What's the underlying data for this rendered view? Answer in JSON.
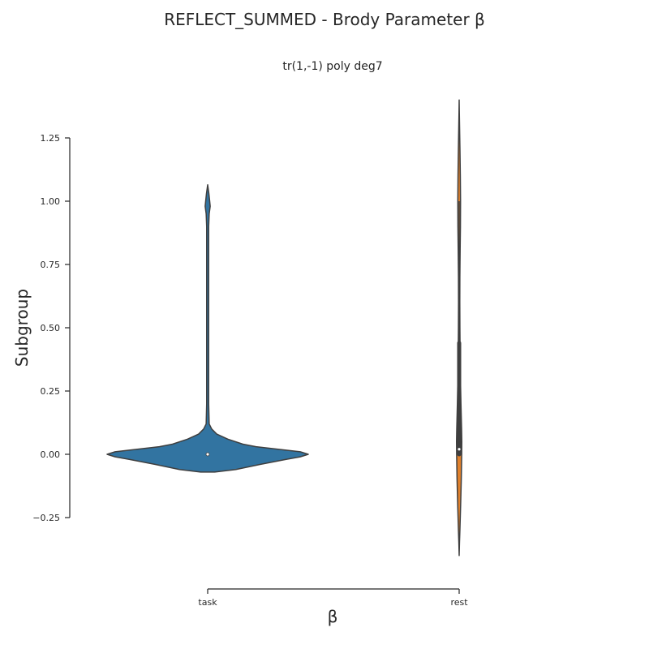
{
  "chart_data": {
    "type": "violin",
    "title": "REFLECT_SUMMED - Brody Parameter β",
    "subtitle": "tr(1,-1) poly deg7",
    "xlabel": "β",
    "ylabel": "Subgroup",
    "categories": [
      "task",
      "rest"
    ],
    "ylim": [
      -0.3,
      1.45
    ],
    "yticks": [
      -0.25,
      0.0,
      0.25,
      0.5,
      0.75,
      1.0,
      1.25
    ],
    "ytick_labels": [
      "−0.25",
      "0.00",
      "0.25",
      "0.50",
      "0.75",
      "1.00",
      "1.25"
    ],
    "grid": false,
    "series": [
      {
        "category": "task",
        "color": "#3274a1",
        "median": 0.0,
        "q1": 0.0,
        "q3": 0.0,
        "whisker_low": 0.0,
        "whisker_high": 0.0,
        "density": [
          [
            -0.07,
            0.07
          ],
          [
            -0.06,
            0.28
          ],
          [
            -0.04,
            0.52
          ],
          [
            -0.02,
            0.78
          ],
          [
            -0.01,
            0.92
          ],
          [
            0.0,
            1.0
          ],
          [
            0.01,
            0.92
          ],
          [
            0.02,
            0.7
          ],
          [
            0.03,
            0.48
          ],
          [
            0.04,
            0.35
          ],
          [
            0.06,
            0.2
          ],
          [
            0.08,
            0.09
          ],
          [
            0.1,
            0.04
          ],
          [
            0.12,
            0.015
          ],
          [
            0.2,
            0.01
          ],
          [
            0.5,
            0.01
          ],
          [
            0.9,
            0.01
          ],
          [
            0.95,
            0.015
          ],
          [
            0.98,
            0.025
          ],
          [
            1.0,
            0.02
          ],
          [
            1.03,
            0.012
          ],
          [
            1.065,
            0.0
          ]
        ]
      },
      {
        "category": "rest",
        "color": "#e1812c",
        "median": 0.02,
        "q1": 0.0,
        "q3": 0.44,
        "whisker_low": 0.0,
        "whisker_high": 1.0,
        "density": [
          [
            -0.4,
            0.0
          ],
          [
            -0.35,
            0.015
          ],
          [
            -0.3,
            0.035
          ],
          [
            -0.2,
            0.07
          ],
          [
            -0.1,
            0.1
          ],
          [
            0.0,
            0.12
          ],
          [
            0.05,
            0.125
          ],
          [
            0.1,
            0.115
          ],
          [
            0.2,
            0.085
          ],
          [
            0.3,
            0.06
          ],
          [
            0.4,
            0.045
          ],
          [
            0.5,
            0.035
          ],
          [
            0.6,
            0.03
          ],
          [
            0.7,
            0.033
          ],
          [
            0.8,
            0.045
          ],
          [
            0.9,
            0.06
          ],
          [
            1.0,
            0.065
          ],
          [
            1.1,
            0.055
          ],
          [
            1.2,
            0.038
          ],
          [
            1.3,
            0.018
          ],
          [
            1.35,
            0.008
          ],
          [
            1.4,
            0.0
          ]
        ]
      }
    ]
  }
}
